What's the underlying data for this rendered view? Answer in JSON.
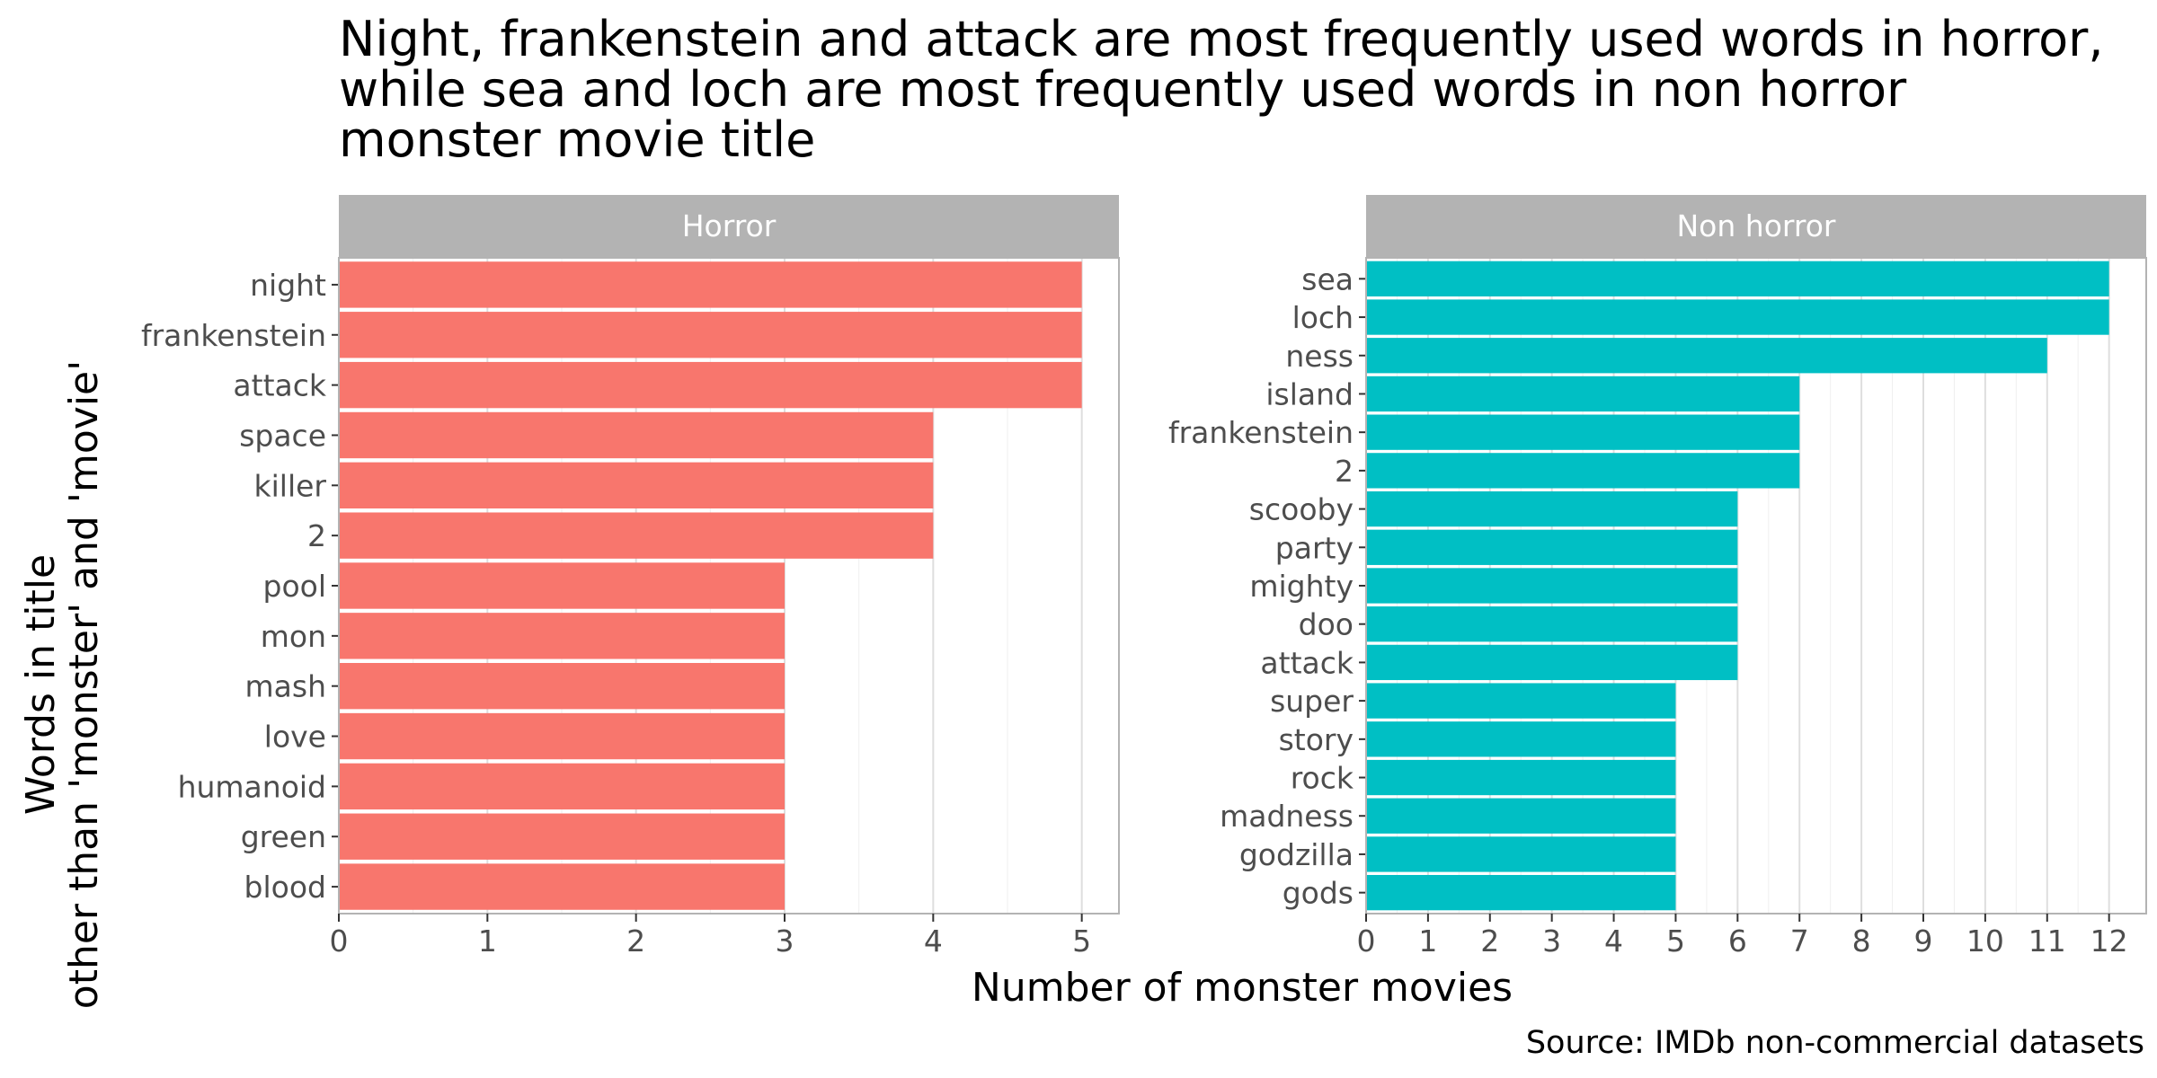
{
  "chart_data": {
    "type": "bar",
    "orientation": "horizontal",
    "title_lines": [
      "Night, frankenstein and attack are most frequently used words in horror,",
      "while sea and loch are most frequently used words in non horror",
      "monster movie title"
    ],
    "xlabel": "Number of monster movies",
    "ylabel_lines": [
      "Words in title",
      "other than 'monster' and 'movie'"
    ],
    "caption": "Source: IMDb non-commercial datasets",
    "grid": true,
    "legend": "none",
    "panels": [
      {
        "name": "Horror",
        "color": "#F8766D",
        "xlim": [
          0,
          5.25
        ],
        "xticks": [
          0,
          1,
          2,
          3,
          4,
          5
        ],
        "categories": [
          "night",
          "frankenstein",
          "attack",
          "space",
          "killer",
          "2",
          "pool",
          "mon",
          "mash",
          "love",
          "humanoid",
          "green",
          "blood"
        ],
        "values": [
          5,
          5,
          5,
          4,
          4,
          4,
          3,
          3,
          3,
          3,
          3,
          3,
          3
        ]
      },
      {
        "name": "Non horror",
        "color": "#00BFC4",
        "xlim": [
          0,
          12.6
        ],
        "xticks": [
          0,
          1,
          2,
          3,
          4,
          5,
          6,
          7,
          8,
          9,
          10,
          11,
          12
        ],
        "categories": [
          "sea",
          "loch",
          "ness",
          "island",
          "frankenstein",
          "2",
          "scooby",
          "party",
          "mighty",
          "doo",
          "attack",
          "super",
          "story",
          "rock",
          "madness",
          "godzilla",
          "gods"
        ],
        "values": [
          12,
          12,
          11,
          7,
          7,
          7,
          6,
          6,
          6,
          6,
          6,
          5,
          5,
          5,
          5,
          5,
          5
        ]
      }
    ]
  }
}
